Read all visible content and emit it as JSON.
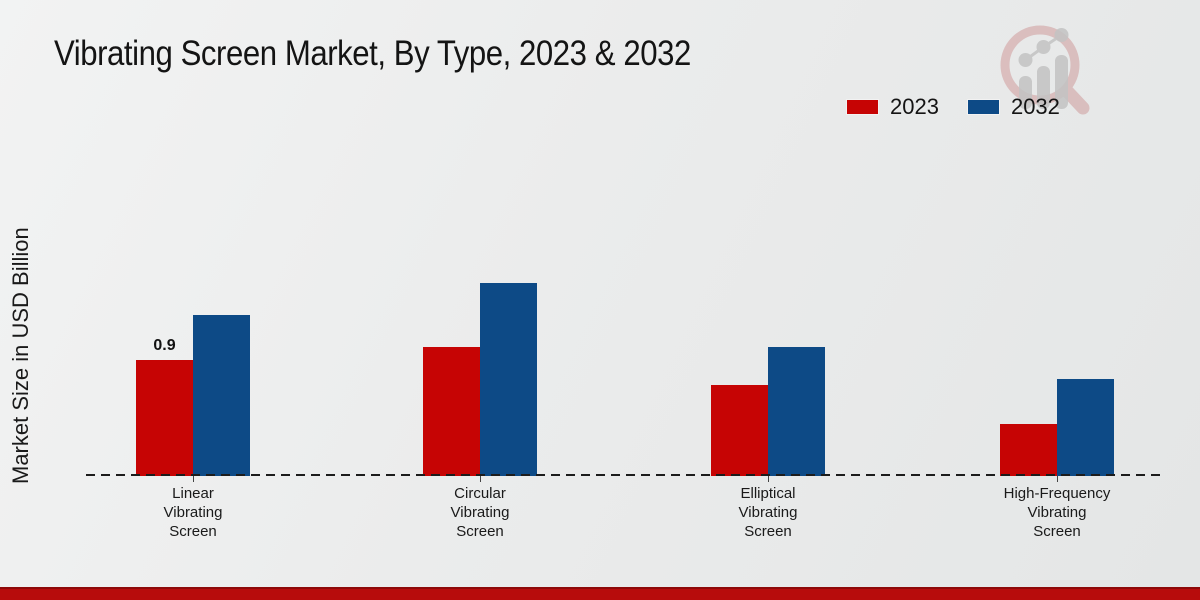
{
  "chart_data": {
    "type": "bar",
    "title": "Vibrating Screen Market, By Type, 2023 & 2032",
    "xlabel": "",
    "ylabel": "Market Size in USD Billion",
    "categories": [
      "Linear\nVibrating\nScreen",
      "Circular\nVibrating\nScreen",
      "Elliptical\nVibrating\nScreen",
      "High-Frequency\nVibrating\nScreen"
    ],
    "series": [
      {
        "name": "2023",
        "color": "#c60404",
        "values": [
          0.9,
          1.0,
          0.7,
          0.4
        ],
        "bar_labels": [
          "0.9",
          "",
          "",
          ""
        ]
      },
      {
        "name": "2032",
        "color": "#0d4a86",
        "values": [
          1.25,
          1.5,
          1.0,
          0.75
        ],
        "bar_labels": [
          "",
          "",
          "",
          ""
        ]
      }
    ],
    "ylim": [
      0,
      1.6
    ],
    "grid": false,
    "legend_position": "top-right",
    "axis_style": "dashed-baseline-only",
    "annotations": [
      {
        "series": "2023",
        "category_index": 0,
        "text": "0.9"
      }
    ]
  },
  "footer": {
    "band_color": "#b70c0c",
    "band_edge_color": "#8e0909"
  },
  "logo": {
    "name": "magnifier-growth-chart-watermark"
  }
}
